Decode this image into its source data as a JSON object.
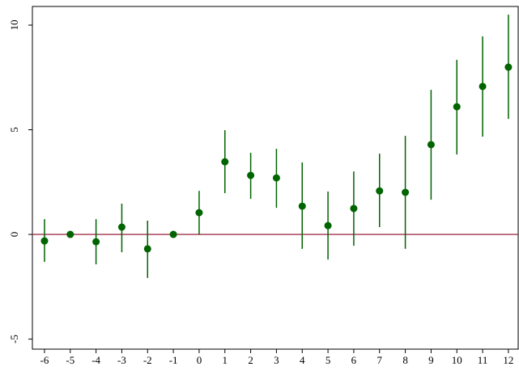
{
  "chart_data": {
    "type": "errorbar",
    "x": [
      -6,
      -5,
      -4,
      -3,
      -2,
      -1,
      0,
      1,
      2,
      3,
      4,
      5,
      6,
      7,
      8,
      9,
      10,
      11,
      12
    ],
    "series": [
      {
        "color": "#006400",
        "values": [
          -0.31,
          0,
          -0.35,
          0.35,
          -0.69,
          0,
          1.04,
          3.47,
          2.82,
          2.7,
          1.35,
          0.42,
          1.24,
          2.08,
          2.01,
          4.29,
          6.1,
          7.07,
          7.99
        ],
        "lower": [
          -1.31,
          null,
          -1.43,
          -0.85,
          -2.08,
          null,
          0,
          1.97,
          1.7,
          1.27,
          -0.69,
          -1.2,
          -0.54,
          0.35,
          -0.69,
          1.66,
          3.82,
          4.67,
          5.52
        ],
        "upper": [
          0.73,
          null,
          0.73,
          1.47,
          0.66,
          null,
          2.08,
          4.98,
          3.9,
          4.09,
          3.44,
          2.05,
          3.01,
          3.86,
          4.71,
          6.91,
          8.34,
          9.46,
          10.5
        ]
      }
    ],
    "hline": 0,
    "hline_color": "#a0304a",
    "xlim": [
      -6.47,
      12.38
    ],
    "ylim": [
      -5.48,
      10.89
    ],
    "xticks": [
      -6,
      -5,
      -4,
      -3,
      -2,
      -1,
      0,
      1,
      2,
      3,
      4,
      5,
      6,
      7,
      8,
      9,
      10,
      11,
      12
    ],
    "yticks": [
      -5,
      0,
      5,
      10
    ]
  }
}
